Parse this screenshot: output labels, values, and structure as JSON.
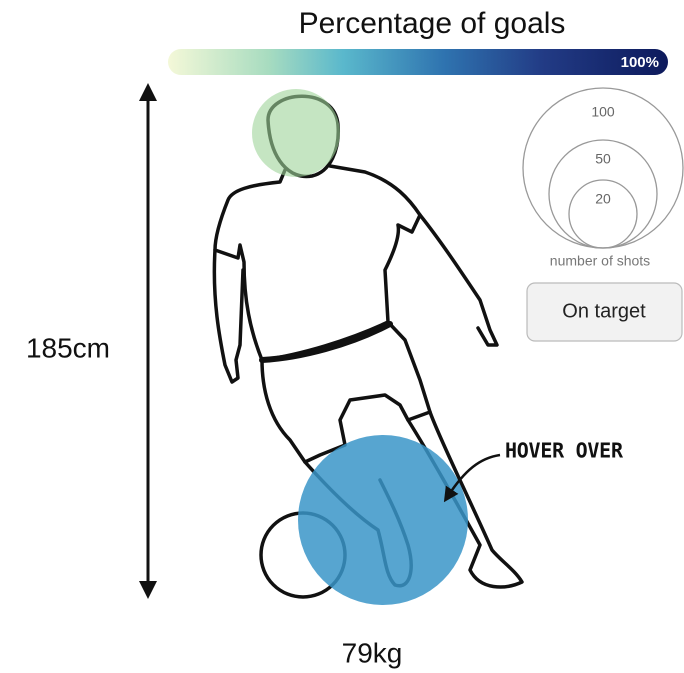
{
  "header": {
    "title": "Percentage of goals",
    "scale_max": "100%"
  },
  "legend": {
    "sizes": [
      "100",
      "50",
      "20"
    ],
    "label": "number of shots"
  },
  "button": {
    "label": "On target"
  },
  "player": {
    "height": "185cm",
    "weight": "79kg"
  },
  "annotation": "HOVER OVER"
}
